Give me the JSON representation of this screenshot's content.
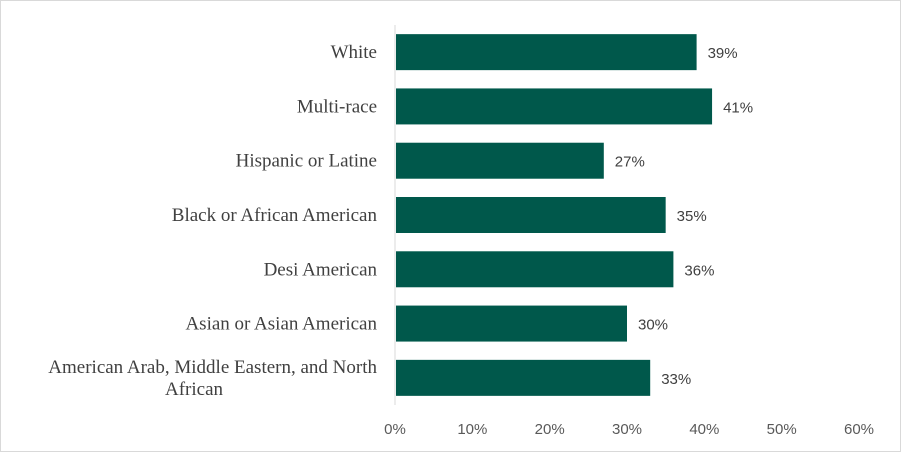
{
  "chart_data": {
    "type": "bar",
    "orientation": "horizontal",
    "categories": [
      "White",
      "Multi-race",
      "Hispanic or Latine",
      "Black or African American",
      "Desi American",
      "Asian or Asian American",
      "American Arab, Middle Eastern, and North African"
    ],
    "values": [
      39,
      41,
      27,
      35,
      36,
      30,
      33
    ],
    "value_labels": [
      "39%",
      "41%",
      "27%",
      "35%",
      "36%",
      "30%",
      "33%"
    ],
    "xlim": [
      0,
      60
    ],
    "x_ticks": [
      "0%",
      "10%",
      "20%",
      "30%",
      "40%",
      "50%",
      "60%"
    ],
    "bar_color": "#00584B",
    "grid": false,
    "legend": "none"
  }
}
